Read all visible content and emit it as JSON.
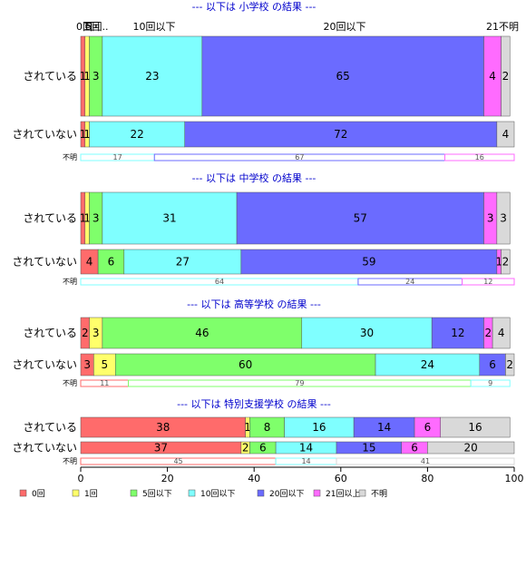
{
  "chart_data": {
    "type": "bar",
    "orientation": "horizontal",
    "stacked": true,
    "percent": true,
    "xlim": [
      0,
      100
    ],
    "xticks": [
      0,
      20,
      40,
      60,
      80,
      100
    ],
    "legend_position": "bottom-left",
    "categories": [
      "0回",
      "1回",
      "5回以下",
      "10回以下",
      "20回以下",
      "21回以上",
      "不明"
    ],
    "colors": [
      "#ff6b6b",
      "#ffff6b",
      "#7fff6b",
      "#7fffff",
      "#6b6bff",
      "#ff6bff",
      "#d9d9d9"
    ],
    "top_labels": [
      "0回",
      "1回",
      "5回..",
      "10回以下",
      "20回以下",
      "21不明"
    ],
    "panels": [
      {
        "title": "--- 以下は 小学校 の結果 ---",
        "rows": [
          {
            "label": "されている",
            "values": [
              1,
              1,
              3,
              23,
              65,
              4,
              2
            ]
          },
          {
            "label": "されていない",
            "values": [
              1,
              1,
              0,
              22,
              72,
              0,
              4
            ]
          }
        ],
        "unknown": {
          "label": "不明",
          "values": [
            0,
            0,
            0,
            17,
            67,
            16,
            0
          ]
        }
      },
      {
        "title": "--- 以下は 中学校 の結果 ---",
        "rows": [
          {
            "label": "されている",
            "values": [
              1,
              1,
              3,
              31,
              57,
              3,
              3
            ]
          },
          {
            "label": "されていない",
            "values": [
              4,
              0,
              6,
              27,
              59,
              1,
              2
            ]
          }
        ],
        "unknown": {
          "label": "不明",
          "values": [
            0,
            0,
            0,
            64,
            24,
            12,
            0
          ]
        }
      },
      {
        "title": "--- 以下は 高等学校 の結果 ---",
        "rows": [
          {
            "label": "されている",
            "values": [
              2,
              3,
              46,
              30,
              12,
              2,
              4
            ]
          },
          {
            "label": "されていない",
            "values": [
              3,
              5,
              60,
              24,
              6,
              0,
              2
            ]
          }
        ],
        "unknown": {
          "label": "不明",
          "values": [
            11,
            0,
            79,
            9,
            0,
            0,
            0
          ]
        }
      },
      {
        "title": "--- 以下は 特別支援学校 の結果 ---",
        "rows": [
          {
            "label": "されている",
            "values": [
              38,
              1,
              8,
              16,
              14,
              6,
              16
            ]
          },
          {
            "label": "されていない",
            "values": [
              37,
              2,
              6,
              14,
              15,
              6,
              20
            ]
          }
        ],
        "unknown": {
          "label": "不明",
          "values": [
            45,
            0,
            0,
            14,
            0,
            0,
            41
          ]
        }
      }
    ]
  }
}
